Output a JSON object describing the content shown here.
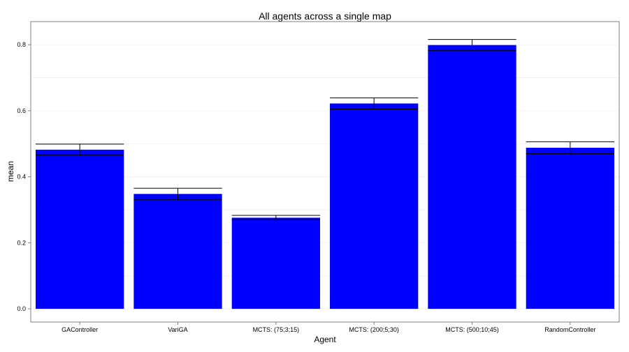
{
  "colors": {
    "bar_fill": "#0000ff",
    "plot_border": "#7f7f7f",
    "grid_line": "#f2f2f2",
    "error_bar": "#000000",
    "background": "#ffffff"
  },
  "chart_data": {
    "type": "bar",
    "title": "All agents across a single map",
    "xlabel": "Agent",
    "ylabel": "mean",
    "categories": [
      "GAController",
      "VariGA",
      "MCTS: (75;3;15)",
      "MCTS: (200;5;30)",
      "MCTS: (500;10;45)",
      "RandomController"
    ],
    "values": [
      0.482,
      0.348,
      0.276,
      0.622,
      0.799,
      0.488
    ],
    "error_low": [
      0.466,
      0.331,
      0.27,
      0.605,
      0.782,
      0.47
    ],
    "error_high": [
      0.499,
      0.365,
      0.283,
      0.639,
      0.816,
      0.506
    ],
    "ylim": [
      -0.04,
      0.87
    ],
    "yticks": [
      0.0,
      0.2,
      0.4,
      0.6,
      0.8
    ],
    "ytick_labels": [
      "0.0",
      "0.2",
      "0.4",
      "0.6",
      "0.8"
    ],
    "grid": true,
    "legend": "none"
  }
}
